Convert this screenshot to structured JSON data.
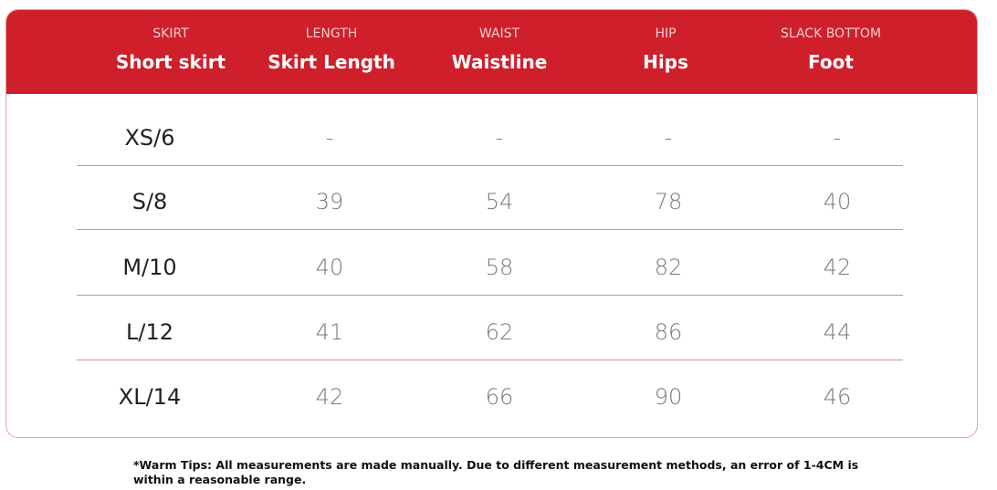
{
  "header": {
    "columns": [
      {
        "label": "SKIRT",
        "title": "Short skirt"
      },
      {
        "label": "LENGTH",
        "title": "Skirt Length"
      },
      {
        "label": "WAIST",
        "title": "Waistline"
      },
      {
        "label": "HIP",
        "title": "Hips"
      },
      {
        "label": "SLACK BOTTOM",
        "title": "Foot"
      }
    ]
  },
  "table": {
    "rows": [
      [
        "XS/6",
        "-",
        "-",
        "-",
        "-"
      ],
      [
        "S/8",
        39,
        54,
        78,
        40
      ],
      [
        "M/10",
        40,
        58,
        82,
        42
      ],
      [
        "L/12",
        41,
        62,
        86,
        44
      ],
      [
        "XL/14",
        42,
        66,
        90,
        46
      ]
    ]
  },
  "footer": {
    "note": "*Warm Tips: All measurements are made manually. Due to different measurement methods, an error of 1-4CM is within a reasonable range."
  }
}
